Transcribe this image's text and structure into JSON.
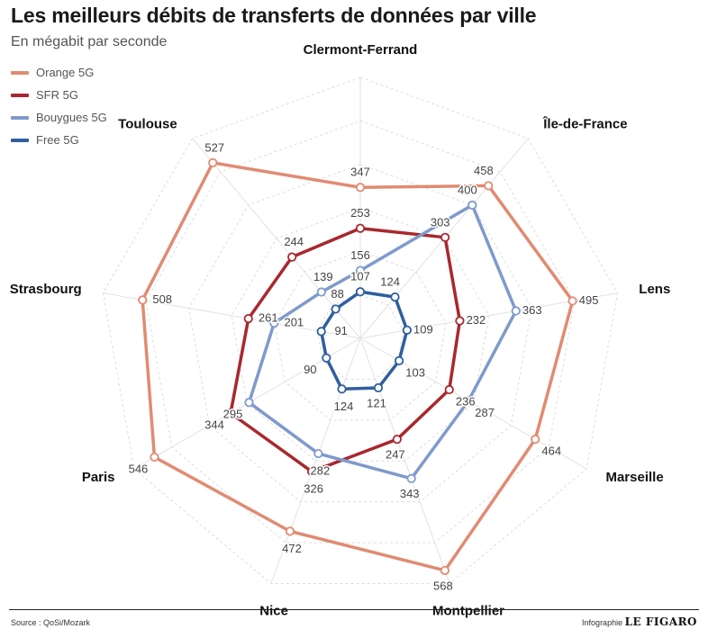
{
  "header": {
    "title": "Les meilleurs débits de transferts de données par ville",
    "subtitle": "En mégabit par seconde"
  },
  "footer": {
    "source": "Source : QoSi/Mozark",
    "credit_prefix": "Infographie",
    "credit_brand": "LE FIGARO"
  },
  "chart_data": {
    "type": "radar",
    "title": "Les meilleurs débits de transferts de données par ville",
    "subtitle": "En mégabit par seconde",
    "categories": [
      "Clermont-Ferrand",
      "Île-de-France",
      "Lens",
      "Marseille",
      "Montpellier",
      "Nice",
      "Paris",
      "Strasbourg",
      "Toulouse"
    ],
    "rmax": 600,
    "grid_rings": 6,
    "legend_position": "top-left",
    "series": [
      {
        "name": "Orange 5G",
        "color": "#e08b72",
        "values": [
          347,
          458,
          495,
          464,
          568,
          472,
          546,
          508,
          527
        ]
      },
      {
        "name": "SFR 5G",
        "color": "#a8282e",
        "values": [
          253,
          303,
          232,
          236,
          247,
          326,
          344,
          261,
          244
        ]
      },
      {
        "name": "Bouygues 5G",
        "color": "#7f9acc",
        "values": [
          156,
          400,
          363,
          287,
          343,
          282,
          295,
          201,
          139
        ]
      },
      {
        "name": "Free 5G",
        "color": "#2f5f9e",
        "values": [
          107,
          124,
          109,
          103,
          121,
          124,
          90,
          91,
          88
        ]
      }
    ]
  }
}
